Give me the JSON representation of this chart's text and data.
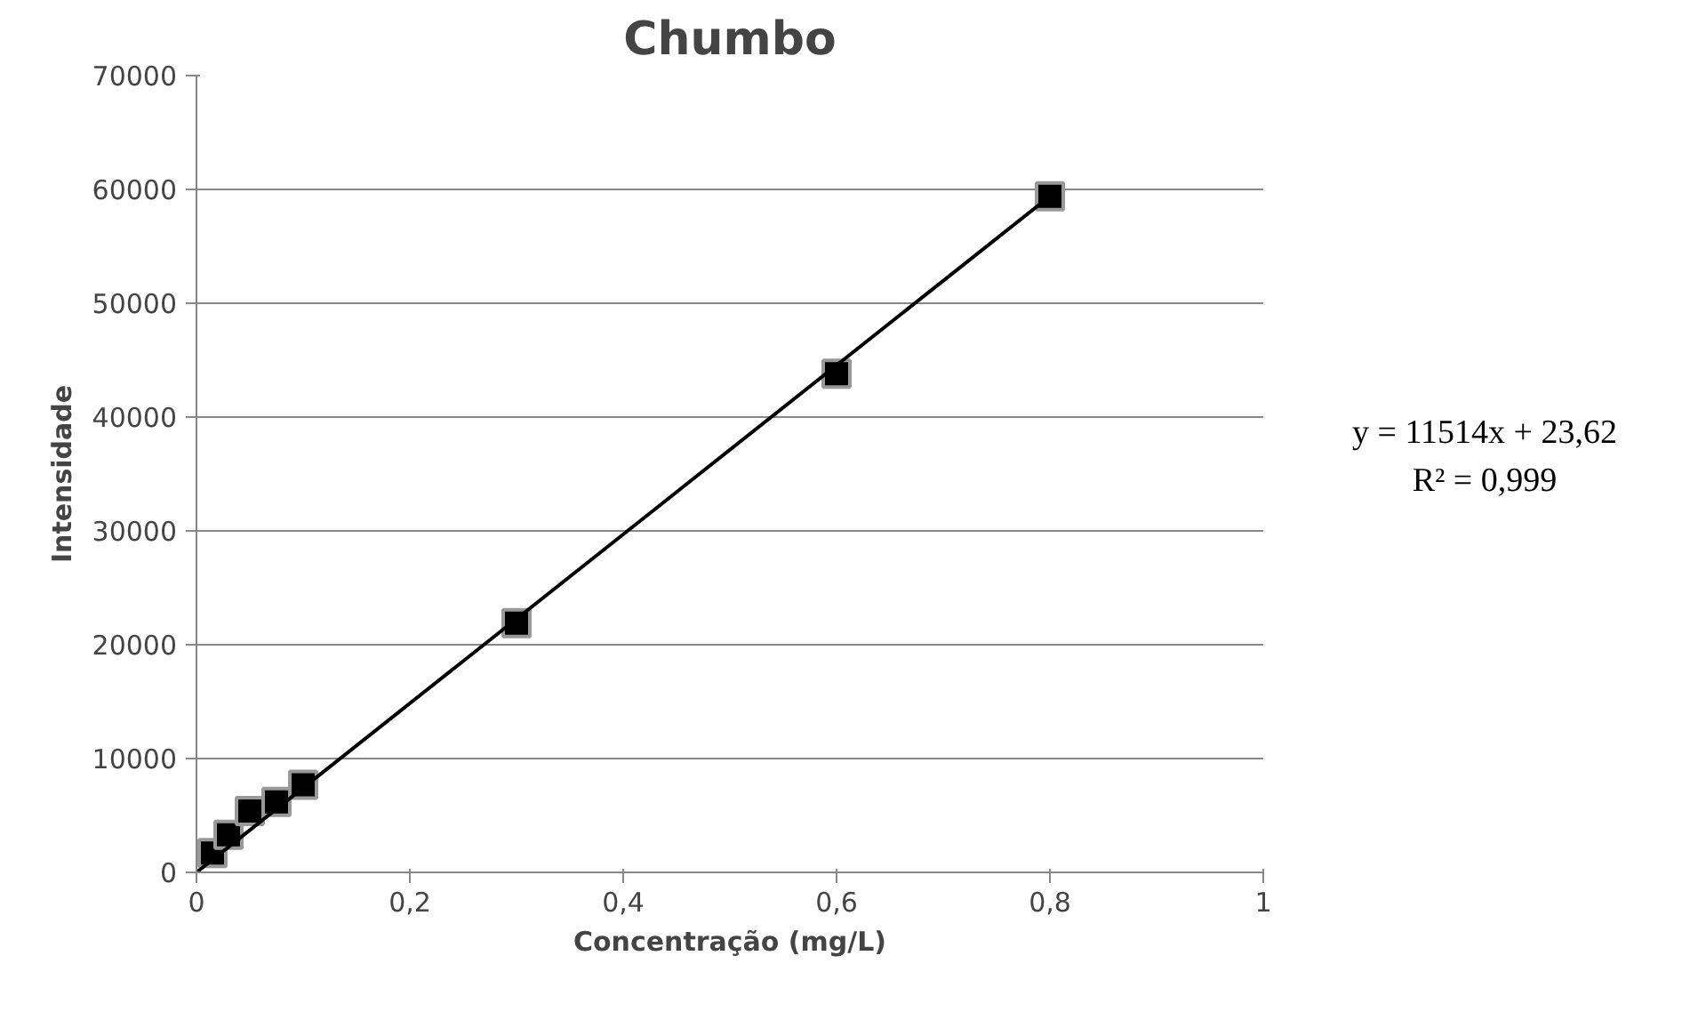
{
  "chart_data": {
    "type": "scatter",
    "title": "Chumbo",
    "xlabel": "Concentração (mg/L)",
    "ylabel": "Intensidade",
    "series": [
      {
        "color": "#000000",
        "marker": "square",
        "x": [
          0.015,
          0.03,
          0.05,
          0.075,
          0.1,
          0.3,
          0.6,
          0.8
        ],
        "values": [
          1700,
          3300,
          5400,
          6200,
          7700,
          21900,
          43800,
          59400
        ]
      },
      {
        "type": "line",
        "color": "#000000",
        "marker": "none",
        "x": [
          0,
          0.8
        ],
        "values": [
          0,
          59400
        ]
      }
    ],
    "xlim": [
      0,
      1
    ],
    "xticks": [
      {
        "value": 0,
        "label": "0"
      },
      {
        "value": 0.2,
        "label": "0,2"
      },
      {
        "value": 0.4,
        "label": "0,4"
      },
      {
        "value": 0.6,
        "label": "0,6"
      },
      {
        "value": 0.8,
        "label": "0,8"
      },
      {
        "value": 1,
        "label": "1"
      }
    ],
    "ylim": [
      0,
      70000
    ],
    "yticks": [
      0,
      10000,
      20000,
      30000,
      40000,
      50000,
      60000,
      70000
    ],
    "grid": "y",
    "annotations": [
      "y = 11514x + 23,62",
      "R² = 0,999"
    ]
  }
}
